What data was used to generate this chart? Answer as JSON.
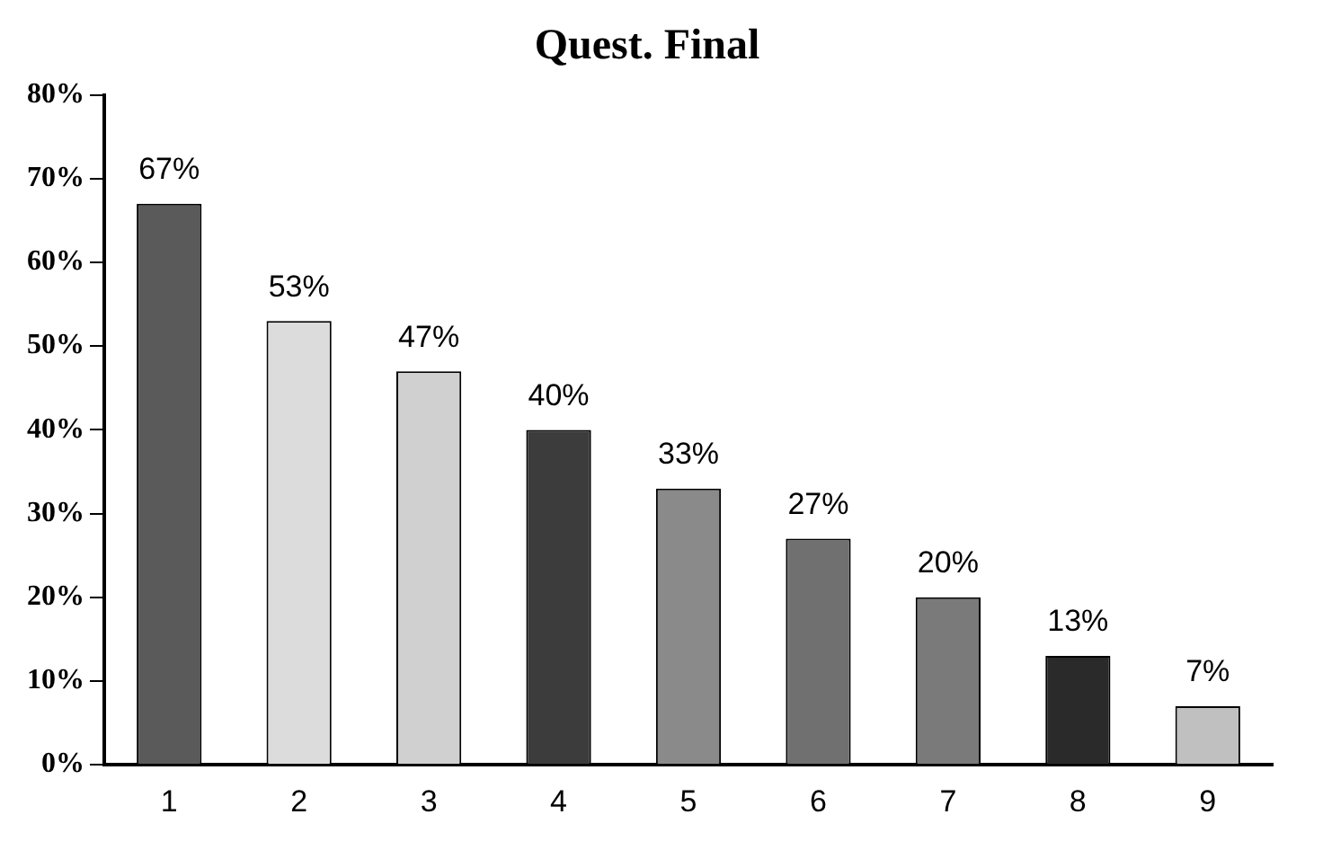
{
  "chart_data": {
    "type": "bar",
    "title": "Quest. Final",
    "categories": [
      "1",
      "2",
      "3",
      "4",
      "5",
      "6",
      "7",
      "8",
      "9"
    ],
    "values": [
      67,
      53,
      47,
      40,
      33,
      27,
      20,
      13,
      7
    ],
    "colors": [
      "#5a5a5a",
      "#dcdcdc",
      "#d0d0d0",
      "#3c3c3c",
      "#8a8a8a",
      "#707070",
      "#7a7a7a",
      "#2a2a2a",
      "#c0c0c0"
    ],
    "value_labels": [
      "67%",
      "53%",
      "47%",
      "40%",
      "33%",
      "27%",
      "20%",
      "13%",
      "7%"
    ],
    "ylim": [
      0,
      80
    ],
    "yticks": [
      {
        "value": 0,
        "label": "0%"
      },
      {
        "value": 10,
        "label": "10%"
      },
      {
        "value": 20,
        "label": "20%"
      },
      {
        "value": 30,
        "label": "30%"
      },
      {
        "value": 40,
        "label": "40%"
      },
      {
        "value": 50,
        "label": "50%"
      },
      {
        "value": 60,
        "label": "60%"
      },
      {
        "value": 70,
        "label": "70%"
      },
      {
        "value": 80,
        "label": "80%"
      }
    ],
    "grid": false,
    "legend": false
  }
}
